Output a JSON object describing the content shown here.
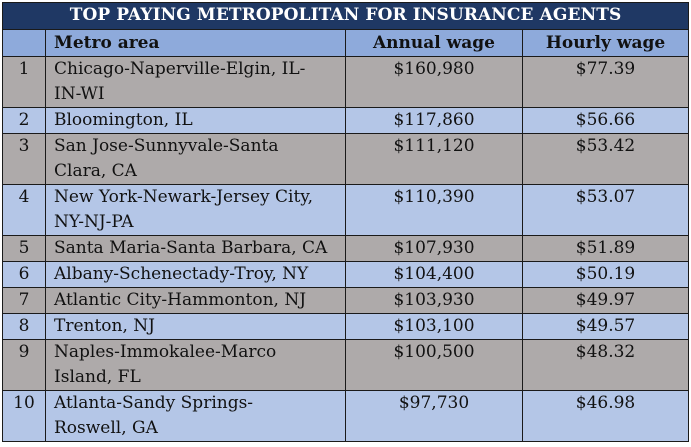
{
  "table": {
    "title": "TOP PAYING METROPOLITAN FOR INSURANCE AGENTS",
    "headers": {
      "rank": "",
      "metro_area": "Metro area",
      "annual_wage": "Annual wage",
      "hourly_wage": "Hourly wage"
    },
    "colors": {
      "title_bg": "#1f3864",
      "header_bg": "#8eaadb",
      "row_gray": "#aeaaaa",
      "row_blue": "#b4c6e7"
    },
    "rows": [
      {
        "rank": "1",
        "metro_line1": "Chicago-Naperville-Elgin, IL-",
        "metro_line2": "IN-WI",
        "annual": "$160,980",
        "hourly": "$77.39"
      },
      {
        "rank": "2",
        "metro_line1": "Bloomington, IL",
        "metro_line2": "",
        "annual": "$117,860",
        "hourly": "$56.66"
      },
      {
        "rank": "3",
        "metro_line1": "San Jose-Sunnyvale-Santa",
        "metro_line2": "Clara, CA",
        "annual": "$111,120",
        "hourly": "$53.42"
      },
      {
        "rank": "4",
        "metro_line1": "New York-Newark-Jersey City,",
        "metro_line2": "NY-NJ-PA",
        "annual": "$110,390",
        "hourly": "$53.07"
      },
      {
        "rank": "5",
        "metro_line1": "Santa Maria-Santa Barbara, CA",
        "metro_line2": "",
        "annual": "$107,930",
        "hourly": "$51.89"
      },
      {
        "rank": "6",
        "metro_line1": "Albany-Schenectady-Troy, NY",
        "metro_line2": "",
        "annual": "$104,400",
        "hourly": "$50.19"
      },
      {
        "rank": "7",
        "metro_line1": "Atlantic City-Hammonton, NJ",
        "metro_line2": "",
        "annual": "$103,930",
        "hourly": "$49.97"
      },
      {
        "rank": "8",
        "metro_line1": "Trenton, NJ",
        "metro_line2": "",
        "annual": "$103,100",
        "hourly": "$49.57"
      },
      {
        "rank": "9",
        "metro_line1": "Naples-Immokalee-Marco",
        "metro_line2": "Island, FL",
        "annual": "$100,500",
        "hourly": "$48.32"
      },
      {
        "rank": "10",
        "metro_line1": "Atlanta-Sandy Springs-",
        "metro_line2": "Roswell, GA",
        "annual": "$97,730",
        "hourly": "$46.98"
      }
    ]
  }
}
